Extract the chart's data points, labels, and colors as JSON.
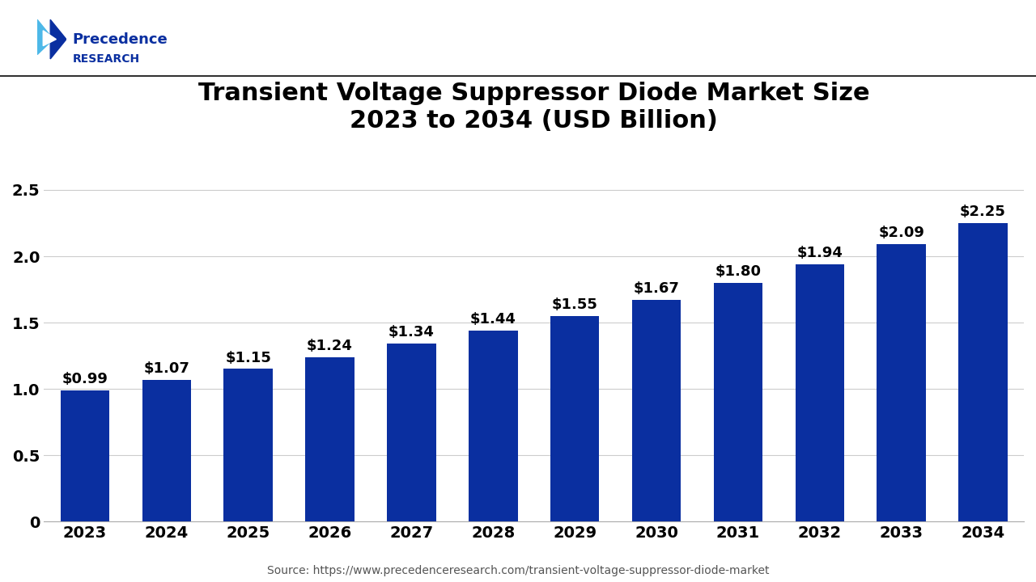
{
  "title": "Transient Voltage Suppressor Diode Market Size\n2023 to 2034 (USD Billion)",
  "years": [
    2023,
    2024,
    2025,
    2026,
    2027,
    2028,
    2029,
    2030,
    2031,
    2032,
    2033,
    2034
  ],
  "values": [
    0.99,
    1.07,
    1.15,
    1.24,
    1.34,
    1.44,
    1.55,
    1.67,
    1.8,
    1.94,
    2.09,
    2.25
  ],
  "labels": [
    "$0.99",
    "$1.07",
    "$1.15",
    "$1.24",
    "$1.34",
    "$1.44",
    "$1.55",
    "$1.67",
    "$1.80",
    "$1.94",
    "$2.09",
    "$2.25"
  ],
  "bar_color": "#0a2fa0",
  "background_color": "#ffffff",
  "title_fontsize": 22,
  "tick_fontsize": 14,
  "label_fontsize": 13,
  "ylim": [
    0,
    2.8
  ],
  "yticks": [
    0,
    0.5,
    1.0,
    1.5,
    2.0,
    2.5
  ],
  "source_text": "Source: https://www.precedenceresearch.com/transient-voltage-suppressor-diode-market",
  "logo_text_line1": "Precedence",
  "logo_text_line2": "RESEARCH"
}
